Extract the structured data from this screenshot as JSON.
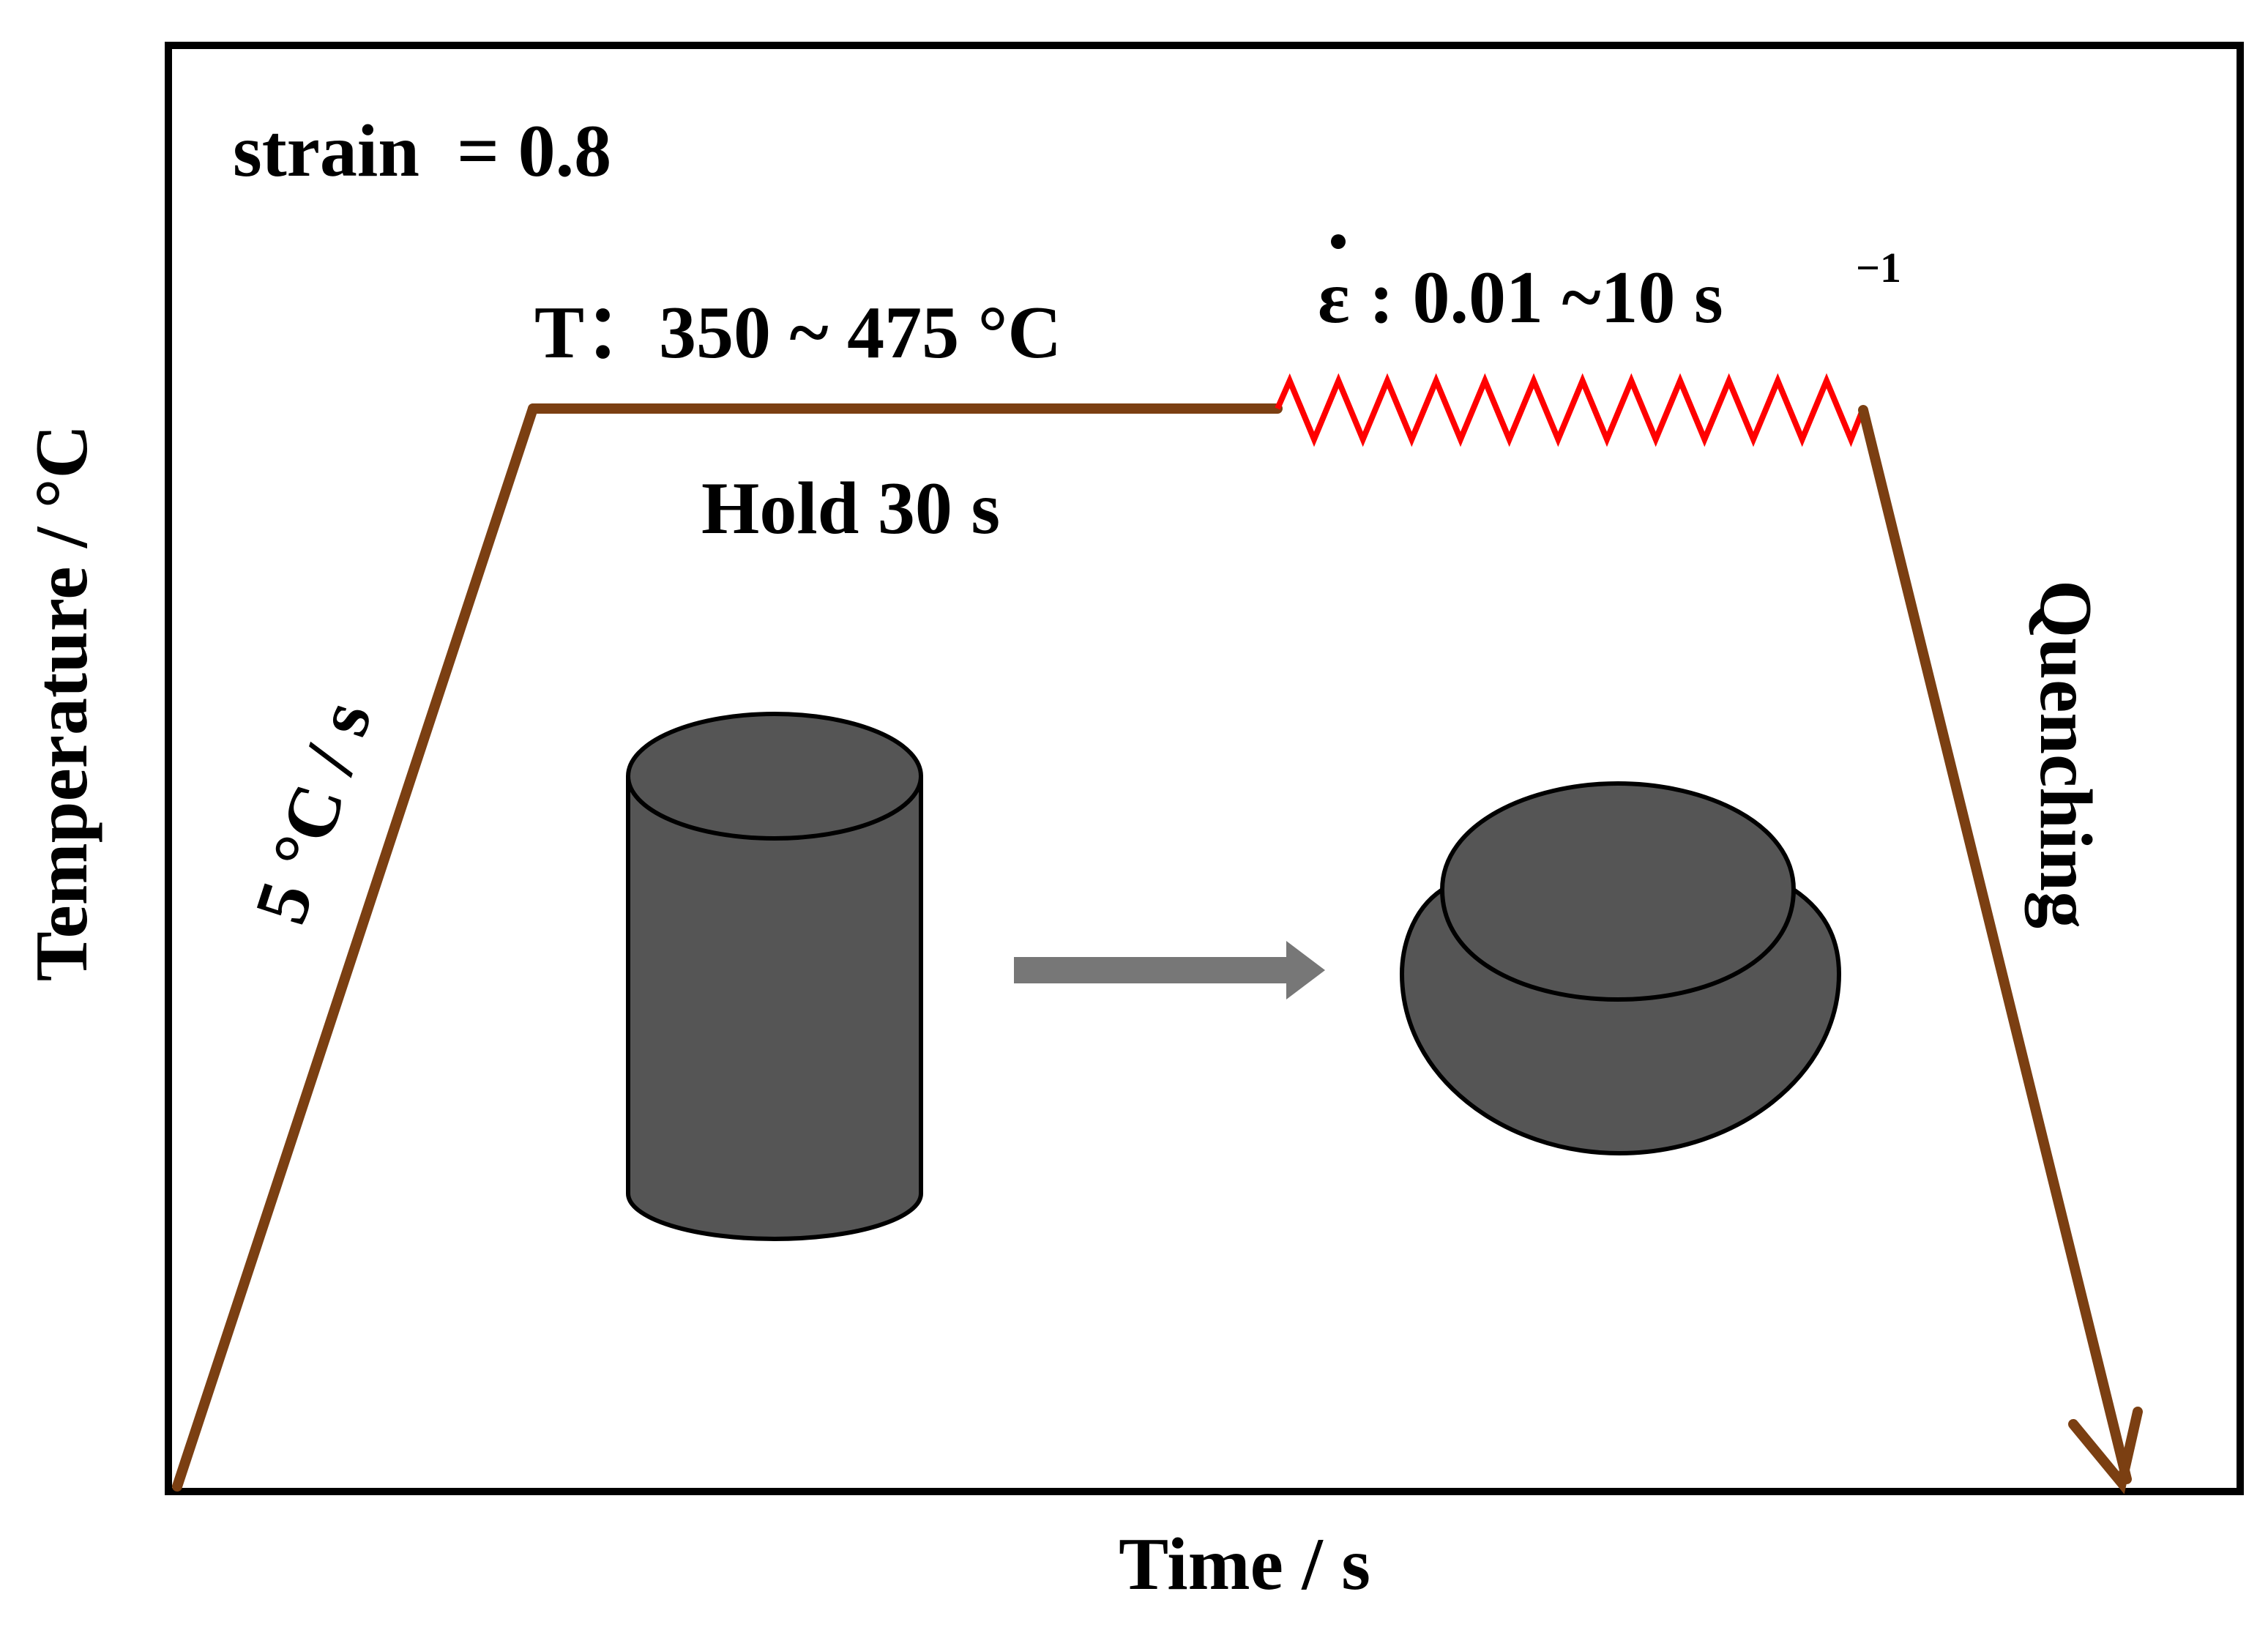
{
  "labels": {
    "strain": "strain  = 0.8",
    "temperature_range": "T：350 ~ 475 °C",
    "strain_rate_symbol": "ε",
    "strain_rate_range": ": 0.01 ~10 s",
    "strain_rate_exponent": "−1",
    "hold": "Hold 30 s",
    "heating_rate": "5 °C / s",
    "quenching": "Quenching",
    "x_axis": "Time / s",
    "y_axis": "Temperature / °C"
  },
  "colors": {
    "path": "#7B3F12",
    "deformation": "#FF0000",
    "specimen_fill": "#555555",
    "specimen_outline": "#000000",
    "arrow": "#777777",
    "frame": "#000000"
  }
}
